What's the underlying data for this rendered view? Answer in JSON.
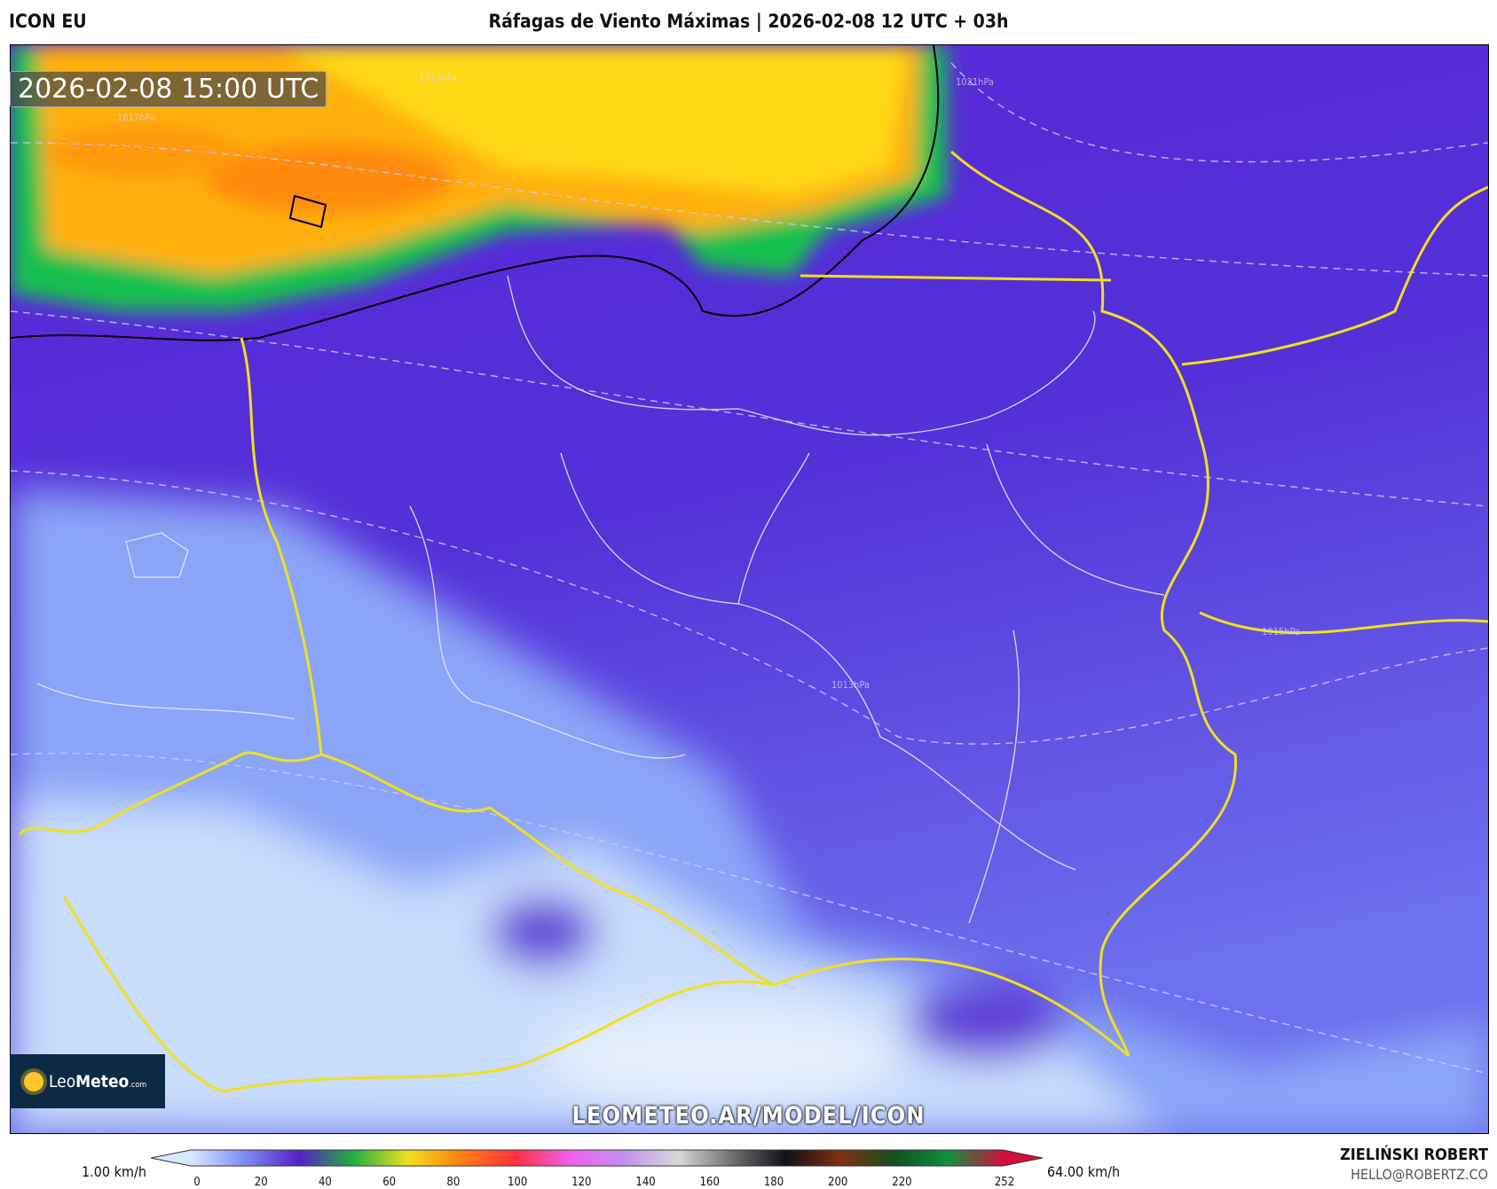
{
  "header": {
    "model": "ICON EU",
    "title": "Ráfagas de Viento Máximas | 2026-02-08 12 UTC + 03h"
  },
  "map": {
    "valid_time": "2026-02-08 15:00 UTC",
    "isobar_labels": [
      "1013hPa",
      "1021hPa",
      "1017hPa",
      "1015hPa",
      "1013hPa"
    ],
    "watermark": "LEOMETEO.AR/MODEL/ICON",
    "logo": "LeoMeteo.com"
  },
  "colorbar": {
    "min_label": "1.00 km/h",
    "max_label": "64.00 km/h",
    "ticks": [
      "0",
      "20",
      "40",
      "60",
      "80",
      "100",
      "120",
      "140",
      "160",
      "180",
      "200",
      "220",
      "252"
    ],
    "colors": [
      "#d8e8ff",
      "#7c8cf2",
      "#5520c8",
      "#20b040",
      "#f0e020",
      "#ff8010",
      "#ff3040",
      "#f060f0",
      "#c090f0",
      "#d8d8d8",
      "#707070",
      "#101018",
      "#803010",
      "#105020",
      "#109040",
      "#d01040"
    ]
  },
  "credits": {
    "author": "ZIELIŃSKI ROBERT",
    "email": "HELLO@ROBERTZ.CO"
  }
}
